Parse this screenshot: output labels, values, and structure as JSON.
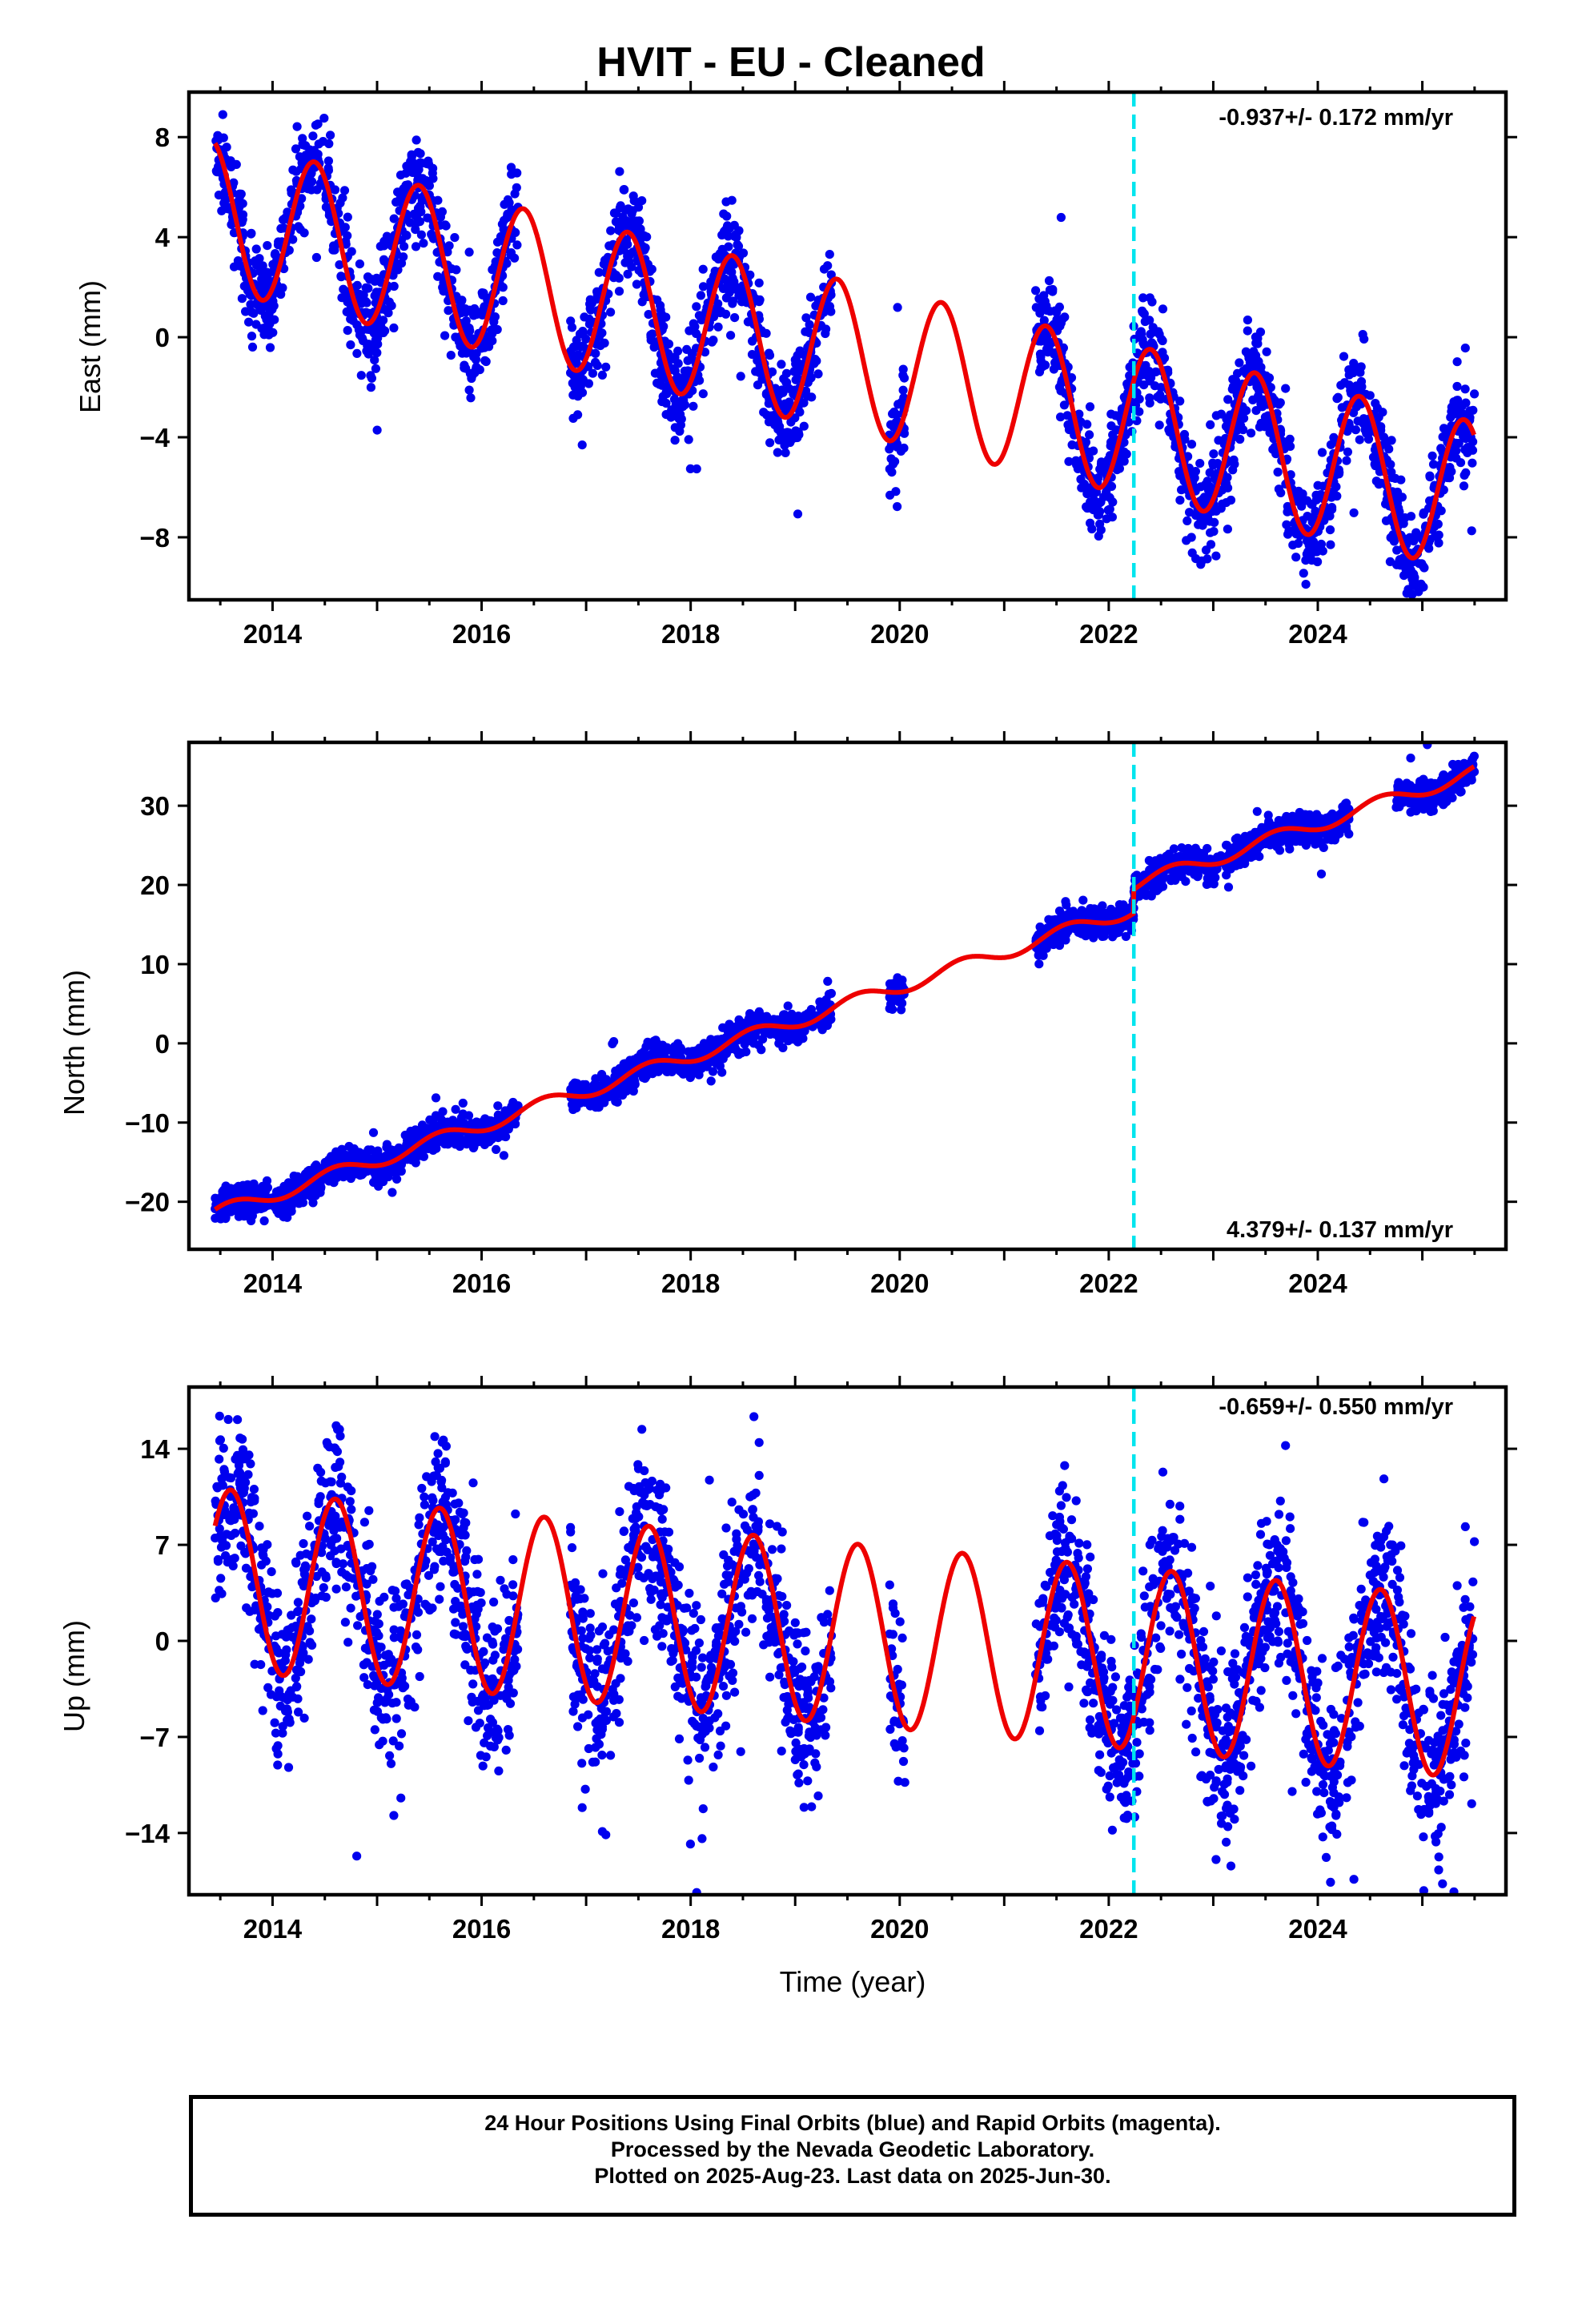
{
  "title": "HVIT  - EU - Cleaned",
  "colors": {
    "data": "#0000ee",
    "fit": "#ee0000",
    "event": "#00e5ee",
    "frame": "#000000"
  },
  "xlabel": "Time (year)",
  "footer": [
    "24 Hour Positions Using Final Orbits (blue) and Rapid Orbits (magenta).",
    "Processed by the Nevada Geodetic Laboratory.",
    "Plotted on 2025-Aug-23. Last data on 2025-Jun-30."
  ],
  "chart_data": [
    {
      "type": "scatter",
      "name": "east",
      "ylabel": "East (mm)",
      "rate_label": "-0.937+/- 0.172 mm/yr",
      "rate_position": "top-right",
      "xlim": [
        2013.2,
        2025.8
      ],
      "ylim": [
        -10.5,
        9.8
      ],
      "xticks": [
        2014,
        2016,
        2018,
        2020,
        2022,
        2024
      ],
      "yticks": [
        -8,
        -4,
        0,
        4,
        8
      ],
      "ytick_labels": [
        "−8",
        "−4",
        "0",
        "4",
        "8"
      ],
      "event_x": 2022.24,
      "model": {
        "t0": 2013.45,
        "slope": -0.937,
        "offset": 4.9,
        "annual_amp": 3.0,
        "annual_peak": 2013.4
      },
      "segments": [
        [
          2013.45,
          2016.35
        ],
        [
          2016.85,
          2019.35
        ],
        [
          2019.9,
          2020.05
        ],
        [
          2021.3,
          2025.5
        ]
      ],
      "scatter_sigma": 1.0,
      "n_points": 2700
    },
    {
      "type": "scatter",
      "name": "north",
      "ylabel": "North (mm)",
      "rate_label": "4.379+/- 0.137 mm/yr",
      "rate_position": "bottom-right",
      "xlim": [
        2013.2,
        2025.8
      ],
      "ylim": [
        -26,
        38
      ],
      "xticks": [
        2014,
        2016,
        2018,
        2020,
        2022,
        2024
      ],
      "yticks": [
        -20,
        -10,
        0,
        10,
        20,
        30
      ],
      "ytick_labels": [
        "−20",
        "−10",
        "0",
        "10",
        "20",
        "30"
      ],
      "event_x": 2022.24,
      "model": {
        "t0": 2013.45,
        "slope": 4.379,
        "offset": -21.5,
        "annual_amp": 0.9,
        "annual_peak": 2013.6,
        "step_at": 2022.24,
        "step": 3.0
      },
      "segments": [
        [
          2013.45,
          2016.35
        ],
        [
          2016.85,
          2019.35
        ],
        [
          2019.9,
          2020.05
        ],
        [
          2021.3,
          2024.3
        ],
        [
          2024.75,
          2025.5
        ]
      ],
      "scatter_sigma": 1.0,
      "n_points": 2700
    },
    {
      "type": "scatter",
      "name": "up",
      "ylabel": "Up (mm)",
      "rate_label": "-0.659+/- 0.550 mm/yr",
      "rate_position": "top-right",
      "xlim": [
        2013.2,
        2025.8
      ],
      "ylim": [
        -18.5,
        18.5
      ],
      "xticks": [
        2014,
        2016,
        2018,
        2020,
        2022,
        2024
      ],
      "yticks": [
        -14,
        -7,
        0,
        7,
        14
      ],
      "ytick_labels": [
        "−14",
        "−7",
        "0",
        "7",
        "14"
      ],
      "event_x": 2022.24,
      "model": {
        "t0": 2013.45,
        "slope": -0.659,
        "offset": 4.5,
        "annual_amp": 6.6,
        "annual_peak": 2013.6
      },
      "segments": [
        [
          2013.45,
          2016.35
        ],
        [
          2016.85,
          2019.35
        ],
        [
          2019.9,
          2020.05
        ],
        [
          2021.3,
          2025.5
        ]
      ],
      "scatter_sigma": 3.2,
      "n_points": 2700
    }
  ]
}
